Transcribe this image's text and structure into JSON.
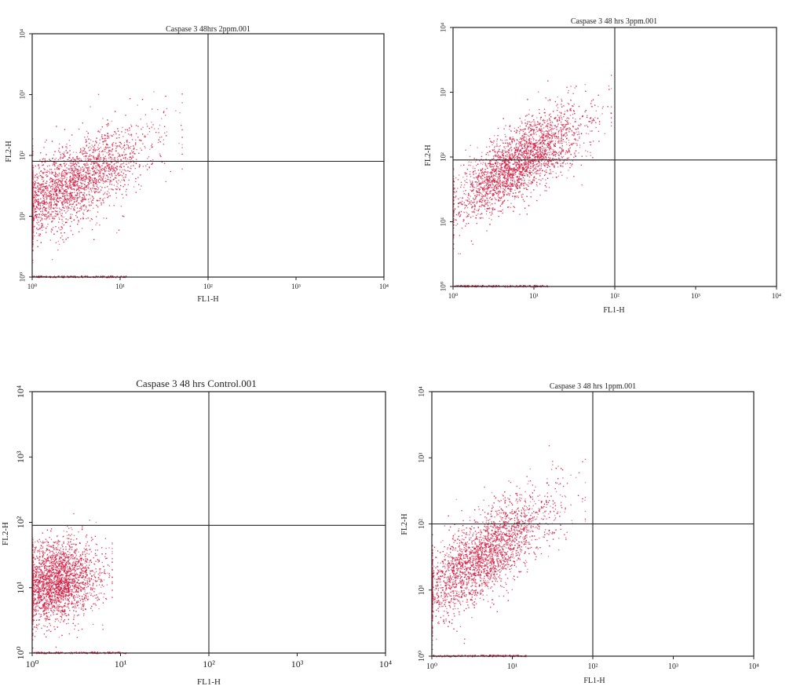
{
  "chart_data": [
    {
      "type": "scatter",
      "title": "Caspase 3 48hrs 2ppm.001",
      "xlabel": "FL1-H",
      "ylabel": "FL2-H",
      "xscale": "log",
      "yscale": "log",
      "xlim": [
        1,
        10000
      ],
      "ylim": [
        1,
        10000
      ],
      "xticks": [
        "10⁰",
        "10¹",
        "10²",
        "10³",
        "10⁴"
      ],
      "yticks": [
        "10⁰",
        "10¹",
        "10²",
        "10³",
        "10⁴"
      ],
      "quadrant_gate": {
        "x": 100,
        "y": 80
      },
      "point_color": "#d0143c",
      "population": {
        "center_log": [
          0.4,
          1.5
        ],
        "spread_log": [
          0.45,
          0.55
        ],
        "slope": 0.75,
        "max_log_x": 1.7
      },
      "n_points": 2600
    },
    {
      "type": "scatter",
      "title": "Caspase 3 48 hrs 3ppm.001",
      "xlabel": "FL1-H",
      "ylabel": "FL2-H",
      "xscale": "log",
      "yscale": "log",
      "xlim": [
        1,
        10000
      ],
      "ylim": [
        1,
        10000
      ],
      "xticks": [
        "10⁰",
        "10¹",
        "10²",
        "10³",
        "10⁴"
      ],
      "yticks": [
        "10⁰",
        "10¹",
        "10²",
        "10³",
        "10⁴"
      ],
      "quadrant_gate": {
        "x": 100,
        "y": 90
      },
      "point_color": "#d0143c",
      "population": {
        "center_log": [
          0.8,
          1.9
        ],
        "spread_log": [
          0.4,
          0.45
        ],
        "slope": 0.8,
        "max_log_x": 1.95
      },
      "n_points": 2600
    },
    {
      "type": "scatter",
      "title": "Caspase 3 48 hrs Control.001",
      "xlabel": "FL1-H",
      "ylabel": "FL2-H",
      "xscale": "log",
      "yscale": "log",
      "xlim": [
        1,
        10000
      ],
      "ylim": [
        1,
        10000
      ],
      "xticks": [
        "10⁰",
        "10¹",
        "10²",
        "10³",
        "10⁴"
      ],
      "yticks": [
        "10⁰",
        "10¹",
        "10²",
        "10³",
        "10⁴"
      ],
      "quadrant_gate": {
        "x": 100,
        "y": 90
      },
      "point_color": "#d0143c",
      "population": {
        "center_log": [
          0.25,
          1.1
        ],
        "spread_log": [
          0.25,
          0.5
        ],
        "slope": 0.3,
        "max_log_x": 0.9
      },
      "n_points": 2600
    },
    {
      "type": "scatter",
      "title": "Caspase 3 48 hrs 1ppm.001",
      "xlabel": "FL1-H",
      "ylabel": "FL2-H",
      "xscale": "log",
      "yscale": "log",
      "xlim": [
        1,
        10000
      ],
      "ylim": [
        1,
        10000
      ],
      "xticks": [
        "10⁰",
        "10¹",
        "10²",
        "10³",
        "10⁴"
      ],
      "yticks": [
        "10⁰",
        "10¹",
        "10²",
        "10³",
        "10⁴"
      ],
      "quadrant_gate": {
        "x": 100,
        "y": 100
      },
      "point_color": "#d0143c",
      "population": {
        "center_log": [
          0.6,
          1.5
        ],
        "spread_log": [
          0.45,
          0.5
        ],
        "slope": 0.8,
        "max_log_x": 1.9
      },
      "n_points": 2600
    }
  ]
}
